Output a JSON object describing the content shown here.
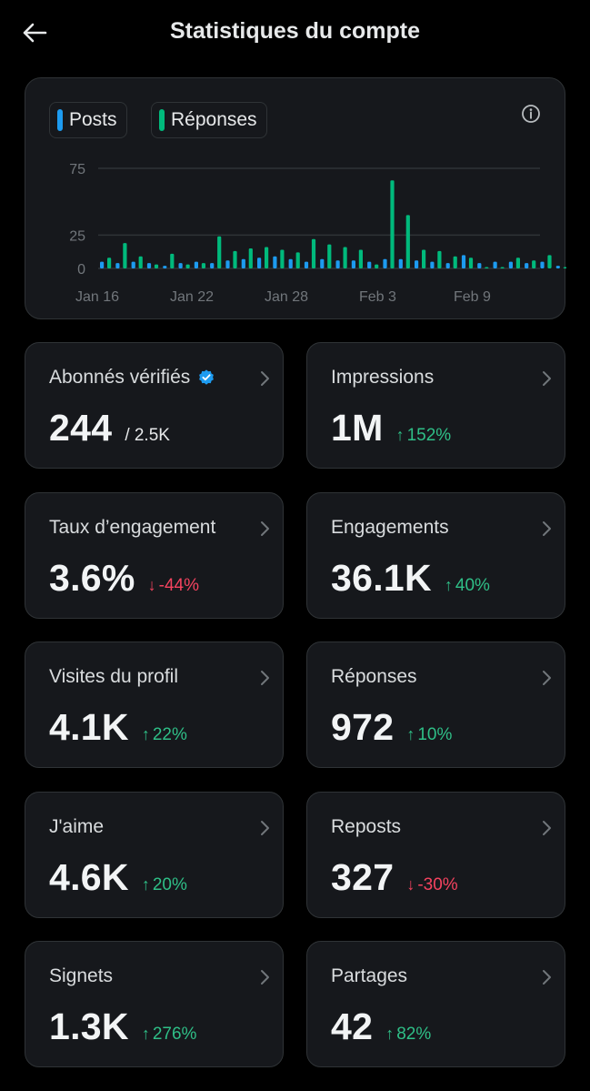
{
  "header": {
    "title": "Statistiques du compte"
  },
  "colors": {
    "posts": "#1d9bf0",
    "replies": "#00ba7c",
    "up": "#2fbf87",
    "down": "#f4435f"
  },
  "chart_data": {
    "type": "bar",
    "series_names": [
      "Posts",
      "Réponses"
    ],
    "x_tick_labels": [
      "Jan 16",
      "Jan 22",
      "Jan 28",
      "Feb 3",
      "Feb 9"
    ],
    "y_tick_labels": [
      "75",
      "25",
      "0"
    ],
    "ylim": [
      0,
      75
    ],
    "grid": true,
    "legend_position": "top-left",
    "series": [
      {
        "name": "Posts",
        "values": [
          5,
          4,
          5,
          4,
          2,
          4,
          5,
          4,
          6,
          7,
          8,
          9,
          7,
          5,
          7,
          6,
          6,
          5,
          7,
          7,
          6,
          5,
          4,
          10,
          4,
          5,
          5,
          4,
          5,
          2,
          1
        ]
      },
      {
        "name": "Réponses",
        "values": [
          8,
          19,
          9,
          3,
          11,
          3,
          4,
          24,
          13,
          15,
          16,
          14,
          12,
          22,
          18,
          16,
          14,
          3,
          66,
          40,
          14,
          13,
          9,
          8,
          1,
          1,
          8,
          6,
          10,
          1,
          1
        ]
      }
    ]
  },
  "cards": [
    {
      "label": "Abonnés vérifiés",
      "value": "244",
      "sub": "/ 2.5K",
      "verified": true
    },
    {
      "label": "Impressions",
      "value": "1M",
      "delta": "152%",
      "direction": "up",
      "arrow": "↑"
    },
    {
      "label": "Taux d’engagement",
      "value": "3.6%",
      "delta": "-44%",
      "direction": "down",
      "arrow": "↓"
    },
    {
      "label": "Engagements",
      "value": "36.1K",
      "delta": "40%",
      "direction": "up",
      "arrow": "↑"
    },
    {
      "label": "Visites du profil",
      "value": "4.1K",
      "delta": "22%",
      "direction": "up",
      "arrow": "↑"
    },
    {
      "label": "Réponses",
      "value": "972",
      "delta": "10%",
      "direction": "up",
      "arrow": "↑"
    },
    {
      "label": "J'aime",
      "value": "4.6K",
      "delta": "20%",
      "direction": "up",
      "arrow": "↑"
    },
    {
      "label": "Reposts",
      "value": "327",
      "delta": "-30%",
      "direction": "down",
      "arrow": "↓"
    },
    {
      "label": "Signets",
      "value": "1.3K",
      "delta": "276%",
      "direction": "up",
      "arrow": "↑"
    },
    {
      "label": "Partages",
      "value": "42",
      "delta": "82%",
      "direction": "up",
      "arrow": "↑"
    }
  ]
}
